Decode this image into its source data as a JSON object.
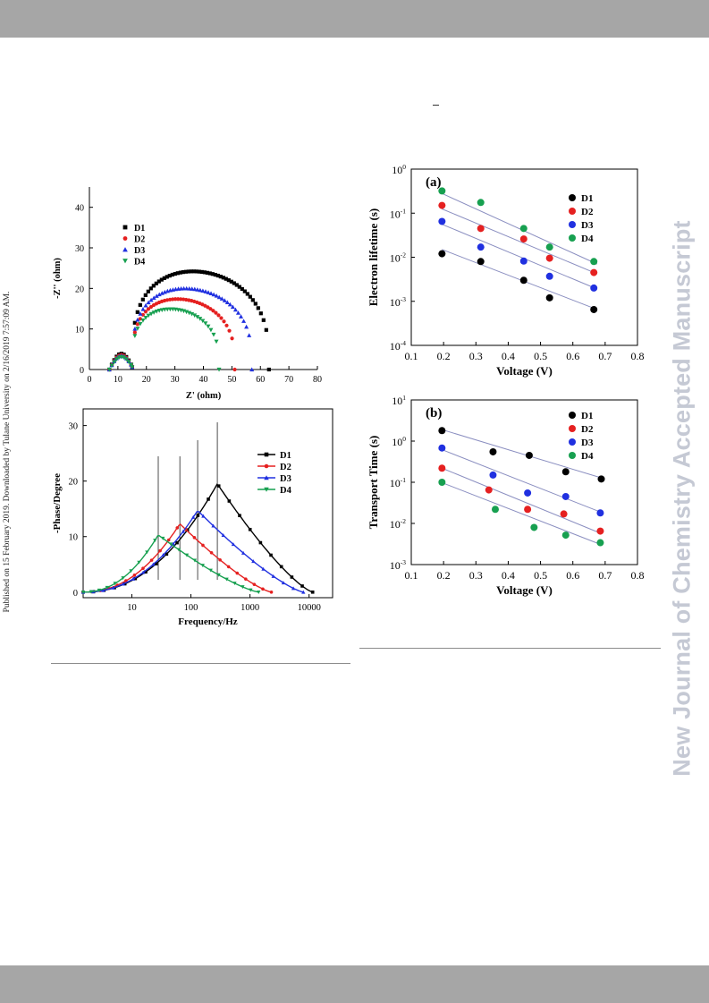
{
  "side_text_left": "Published on 15 February 2019. Downloaded by Tulane University on 2/16/2019 7:57:09 AM.",
  "side_text_right": "New Journal of Chemistry Accepted Manuscript",
  "colors": {
    "D1": "#000000",
    "D2": "#e52020",
    "D3": "#2030e0",
    "D4": "#17a050",
    "fit": "#8a8ec0",
    "bar": "#a6a6a6",
    "watermark": "#c5c9d4"
  },
  "chart_data": [
    {
      "type": "scatter",
      "title": "",
      "xlabel": "Z' (ohm)",
      "ylabel": "-Z'' (ohm)",
      "xlim": [
        0,
        80
      ],
      "ylim": [
        0,
        45
      ],
      "xticks": [
        "0",
        "10",
        "20",
        "30",
        "40",
        "50",
        "60",
        "70",
        "80"
      ],
      "yticks": [
        "0",
        "10",
        "20",
        "30",
        "40"
      ],
      "legend_position": "upper-left",
      "series": [
        {
          "name": "D1",
          "marker": "square",
          "arc": {
            "x_start": 15,
            "x_end": 63,
            "peak": 23.8,
            "x_min": 7,
            "shoulder": 3.5
          }
        },
        {
          "name": "D2",
          "marker": "circle",
          "arc": {
            "x_start": 15,
            "x_end": 51,
            "peak": 17.0,
            "x_min": 7,
            "shoulder": 3.2
          }
        },
        {
          "name": "D3",
          "marker": "triangle-up",
          "arc": {
            "x_start": 15,
            "x_end": 57,
            "peak": 19.6,
            "x_min": 7,
            "shoulder": 3.0
          }
        },
        {
          "name": "D4",
          "marker": "triangle-down",
          "arc": {
            "x_start": 15,
            "x_end": 45.5,
            "peak": 14.5,
            "x_min": 7,
            "shoulder": 2.7
          }
        }
      ]
    },
    {
      "type": "line",
      "title": "",
      "xlabel": "Frequency/Hz",
      "ylabel": "-Phase/Degree",
      "xscale": "log",
      "xlim": [
        1.5,
        25000
      ],
      "ylim": [
        -1,
        33
      ],
      "xticks": [
        "10",
        "100",
        "1000",
        "10000"
      ],
      "yticks": [
        "0",
        "10",
        "20",
        "30"
      ],
      "legend_position": "right",
      "series": [
        {
          "name": "D1",
          "marker": "square",
          "peak_freq": 280,
          "peak_deg": 19.5,
          "end_freq": 11500
        },
        {
          "name": "D2",
          "marker": "circle",
          "peak_freq": 65,
          "peak_deg": 12.3,
          "end_freq": 2300
        },
        {
          "name": "D3",
          "marker": "triangle-up",
          "peak_freq": 130,
          "peak_deg": 14.7,
          "end_freq": 8000
        },
        {
          "name": "D4",
          "marker": "triangle-down",
          "peak_freq": 28,
          "peak_deg": 10.3,
          "end_freq": 1400
        }
      ],
      "vlines": [
        28,
        65,
        130,
        280
      ]
    },
    {
      "type": "scatter",
      "title": "(a)",
      "xlabel": "Voltage (V)",
      "ylabel": "Electron lifetime (s)",
      "yscale": "log",
      "xlim": [
        0.1,
        0.8
      ],
      "ylim_exp": [
        -4,
        0
      ],
      "xticks": [
        "0.1",
        "0.2",
        "0.3",
        "0.4",
        "0.5",
        "0.6",
        "0.7",
        "0.8"
      ],
      "ytick_exponents": [
        "0",
        "-1",
        "-2",
        "-3",
        "-4"
      ],
      "legend_position": "top-right",
      "series": [
        {
          "name": "D1",
          "x": [
            0.195,
            0.315,
            0.448,
            0.528,
            0.665
          ],
          "y": [
            0.012,
            0.008,
            0.003,
            0.0012,
            0.00065
          ]
        },
        {
          "name": "D2",
          "x": [
            0.195,
            0.315,
            0.448,
            0.528,
            0.665
          ],
          "y": [
            0.15,
            0.045,
            0.026,
            0.0095,
            0.0045
          ]
        },
        {
          "name": "D3",
          "x": [
            0.195,
            0.315,
            0.448,
            0.528,
            0.665
          ],
          "y": [
            0.065,
            0.017,
            0.0082,
            0.0037,
            0.002
          ]
        },
        {
          "name": "D4",
          "x": [
            0.195,
            0.315,
            0.448,
            0.528,
            0.665
          ],
          "y": [
            0.32,
            0.175,
            0.045,
            0.017,
            0.008
          ]
        }
      ],
      "fits": [
        {
          "x": [
            0.195,
            0.675
          ],
          "y": [
            0.015,
            0.00065
          ]
        },
        {
          "x": [
            0.195,
            0.675
          ],
          "y": [
            0.125,
            0.0042
          ]
        },
        {
          "x": [
            0.195,
            0.675
          ],
          "y": [
            0.056,
            0.0019
          ]
        },
        {
          "x": [
            0.195,
            0.675
          ],
          "y": [
            0.28,
            0.007
          ]
        }
      ]
    },
    {
      "type": "scatter",
      "title": "(b)",
      "xlabel": "Voltage (V)",
      "ylabel": "Transport Time (s)",
      "yscale": "log",
      "xlim": [
        0.1,
        0.8
      ],
      "ylim_exp": [
        -3,
        1
      ],
      "xticks": [
        "0.1",
        "0.2",
        "0.3",
        "0.4",
        "0.5",
        "0.6",
        "0.7",
        "0.8"
      ],
      "ytick_exponents": [
        "1",
        "0",
        "-1",
        "-2",
        "-3"
      ],
      "legend_position": "top-right",
      "series": [
        {
          "name": "D1",
          "x": [
            0.195,
            0.353,
            0.465,
            0.578,
            0.688
          ],
          "y": [
            1.8,
            0.55,
            0.45,
            0.18,
            0.12
          ]
        },
        {
          "name": "D2",
          "x": [
            0.195,
            0.34,
            0.46,
            0.572,
            0.685
          ],
          "y": [
            0.22,
            0.065,
            0.022,
            0.017,
            0.0065
          ]
        },
        {
          "name": "D3",
          "x": [
            0.195,
            0.353,
            0.46,
            0.578,
            0.685
          ],
          "y": [
            0.68,
            0.15,
            0.055,
            0.045,
            0.018
          ]
        },
        {
          "name": "D4",
          "x": [
            0.195,
            0.36,
            0.48,
            0.578,
            0.685
          ],
          "y": [
            0.1,
            0.022,
            0.008,
            0.0052,
            0.0034
          ]
        }
      ],
      "fits": [
        {
          "x": [
            0.195,
            0.685
          ],
          "y": [
            1.9,
            0.13
          ]
        },
        {
          "x": [
            0.195,
            0.685
          ],
          "y": [
            0.22,
            0.0058
          ]
        },
        {
          "x": [
            0.195,
            0.685
          ],
          "y": [
            0.62,
            0.019
          ]
        },
        {
          "x": [
            0.195,
            0.685
          ],
          "y": [
            0.098,
            0.0031
          ]
        }
      ]
    }
  ]
}
